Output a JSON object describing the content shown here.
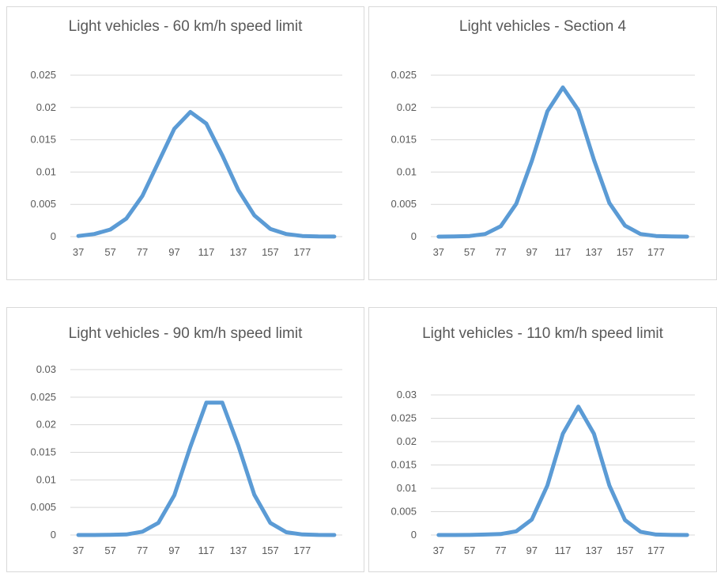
{
  "chart_data": [
    {
      "type": "line",
      "title": "Light vehicles - 60 km/h speed limit",
      "xlabel": "",
      "ylabel": "",
      "x": [
        37,
        47,
        57,
        67,
        77,
        87,
        97,
        107,
        117,
        127,
        137,
        147,
        157,
        167,
        177,
        187,
        197
      ],
      "x_tick_labels": [
        "37",
        "57",
        "77",
        "97",
        "117",
        "137",
        "157",
        "177"
      ],
      "y_ticks": [
        "0",
        "0.005",
        "0.01",
        "0.015",
        "0.02",
        "0.025"
      ],
      "ylim": [
        0,
        0.025
      ],
      "grid": true,
      "color": "#5b9bd5",
      "series": [
        {
          "values": [
            0.0001,
            0.0004,
            0.0011,
            0.0028,
            0.0063,
            0.0115,
            0.0167,
            0.0193,
            0.0175,
            0.0126,
            0.0072,
            0.0033,
            0.0012,
            0.0004,
            0.0001,
            3e-05,
            1e-05
          ]
        }
      ]
    },
    {
      "type": "line",
      "title": "Light vehicles - Section 4",
      "xlabel": "",
      "ylabel": "",
      "x": [
        37,
        47,
        57,
        67,
        77,
        87,
        97,
        107,
        117,
        127,
        137,
        147,
        157,
        167,
        177,
        187,
        197
      ],
      "x_tick_labels": [
        "37",
        "57",
        "77",
        "97",
        "117",
        "137",
        "157",
        "177"
      ],
      "y_ticks": [
        "0",
        "0.005",
        "0.01",
        "0.015",
        "0.02",
        "0.025"
      ],
      "ylim": [
        0,
        0.025
      ],
      "grid": true,
      "color": "#5b9bd5",
      "series": [
        {
          "values": [
            0.0,
            2e-05,
            0.0001,
            0.0004,
            0.0016,
            0.0051,
            0.0117,
            0.0194,
            0.0231,
            0.0196,
            0.0119,
            0.0052,
            0.0017,
            0.0004,
            0.0001,
            2e-05,
            0.0
          ]
        }
      ]
    },
    {
      "type": "line",
      "title": "Light vehicles - 90 km/h speed limit",
      "xlabel": "",
      "ylabel": "",
      "x": [
        37,
        47,
        57,
        67,
        77,
        87,
        97,
        107,
        117,
        127,
        137,
        147,
        157,
        167,
        177,
        187,
        197
      ],
      "x_tick_labels": [
        "37",
        "57",
        "77",
        "97",
        "117",
        "137",
        "157",
        "177"
      ],
      "y_ticks": [
        "0",
        "0.005",
        "0.01",
        "0.015",
        "0.02",
        "0.025",
        "0.03"
      ],
      "ylim": [
        0,
        0.03
      ],
      "grid": true,
      "color": "#5b9bd5",
      "series": [
        {
          "values": [
            0.0,
            0.0,
            3e-05,
            0.0001,
            0.0006,
            0.0022,
            0.0072,
            0.016,
            0.024,
            0.024,
            0.0162,
            0.0073,
            0.0022,
            0.0005,
            0.0001,
            2e-05,
            0.0
          ]
        }
      ]
    },
    {
      "type": "line",
      "title": "Light vehicles - 110 km/h speed limit",
      "xlabel": "",
      "ylabel": "",
      "x": [
        37,
        47,
        57,
        67,
        77,
        87,
        97,
        107,
        117,
        127,
        137,
        147,
        157,
        167,
        177,
        187,
        197
      ],
      "x_tick_labels": [
        "37",
        "57",
        "77",
        "97",
        "117",
        "137",
        "157",
        "177"
      ],
      "y_ticks": [
        "0",
        "0.005",
        "0.01",
        "0.015",
        "0.02",
        "0.025",
        "0.03"
      ],
      "ylim": [
        0,
        0.03
      ],
      "grid": true,
      "color": "#5b9bd5",
      "series": [
        {
          "values": [
            0.0,
            0.0,
            2e-05,
            0.0001,
            0.0002,
            0.0008,
            0.0033,
            0.0106,
            0.0217,
            0.0275,
            0.0217,
            0.0106,
            0.0032,
            0.0007,
            0.0001,
            2e-05,
            0.0
          ]
        }
      ]
    }
  ]
}
